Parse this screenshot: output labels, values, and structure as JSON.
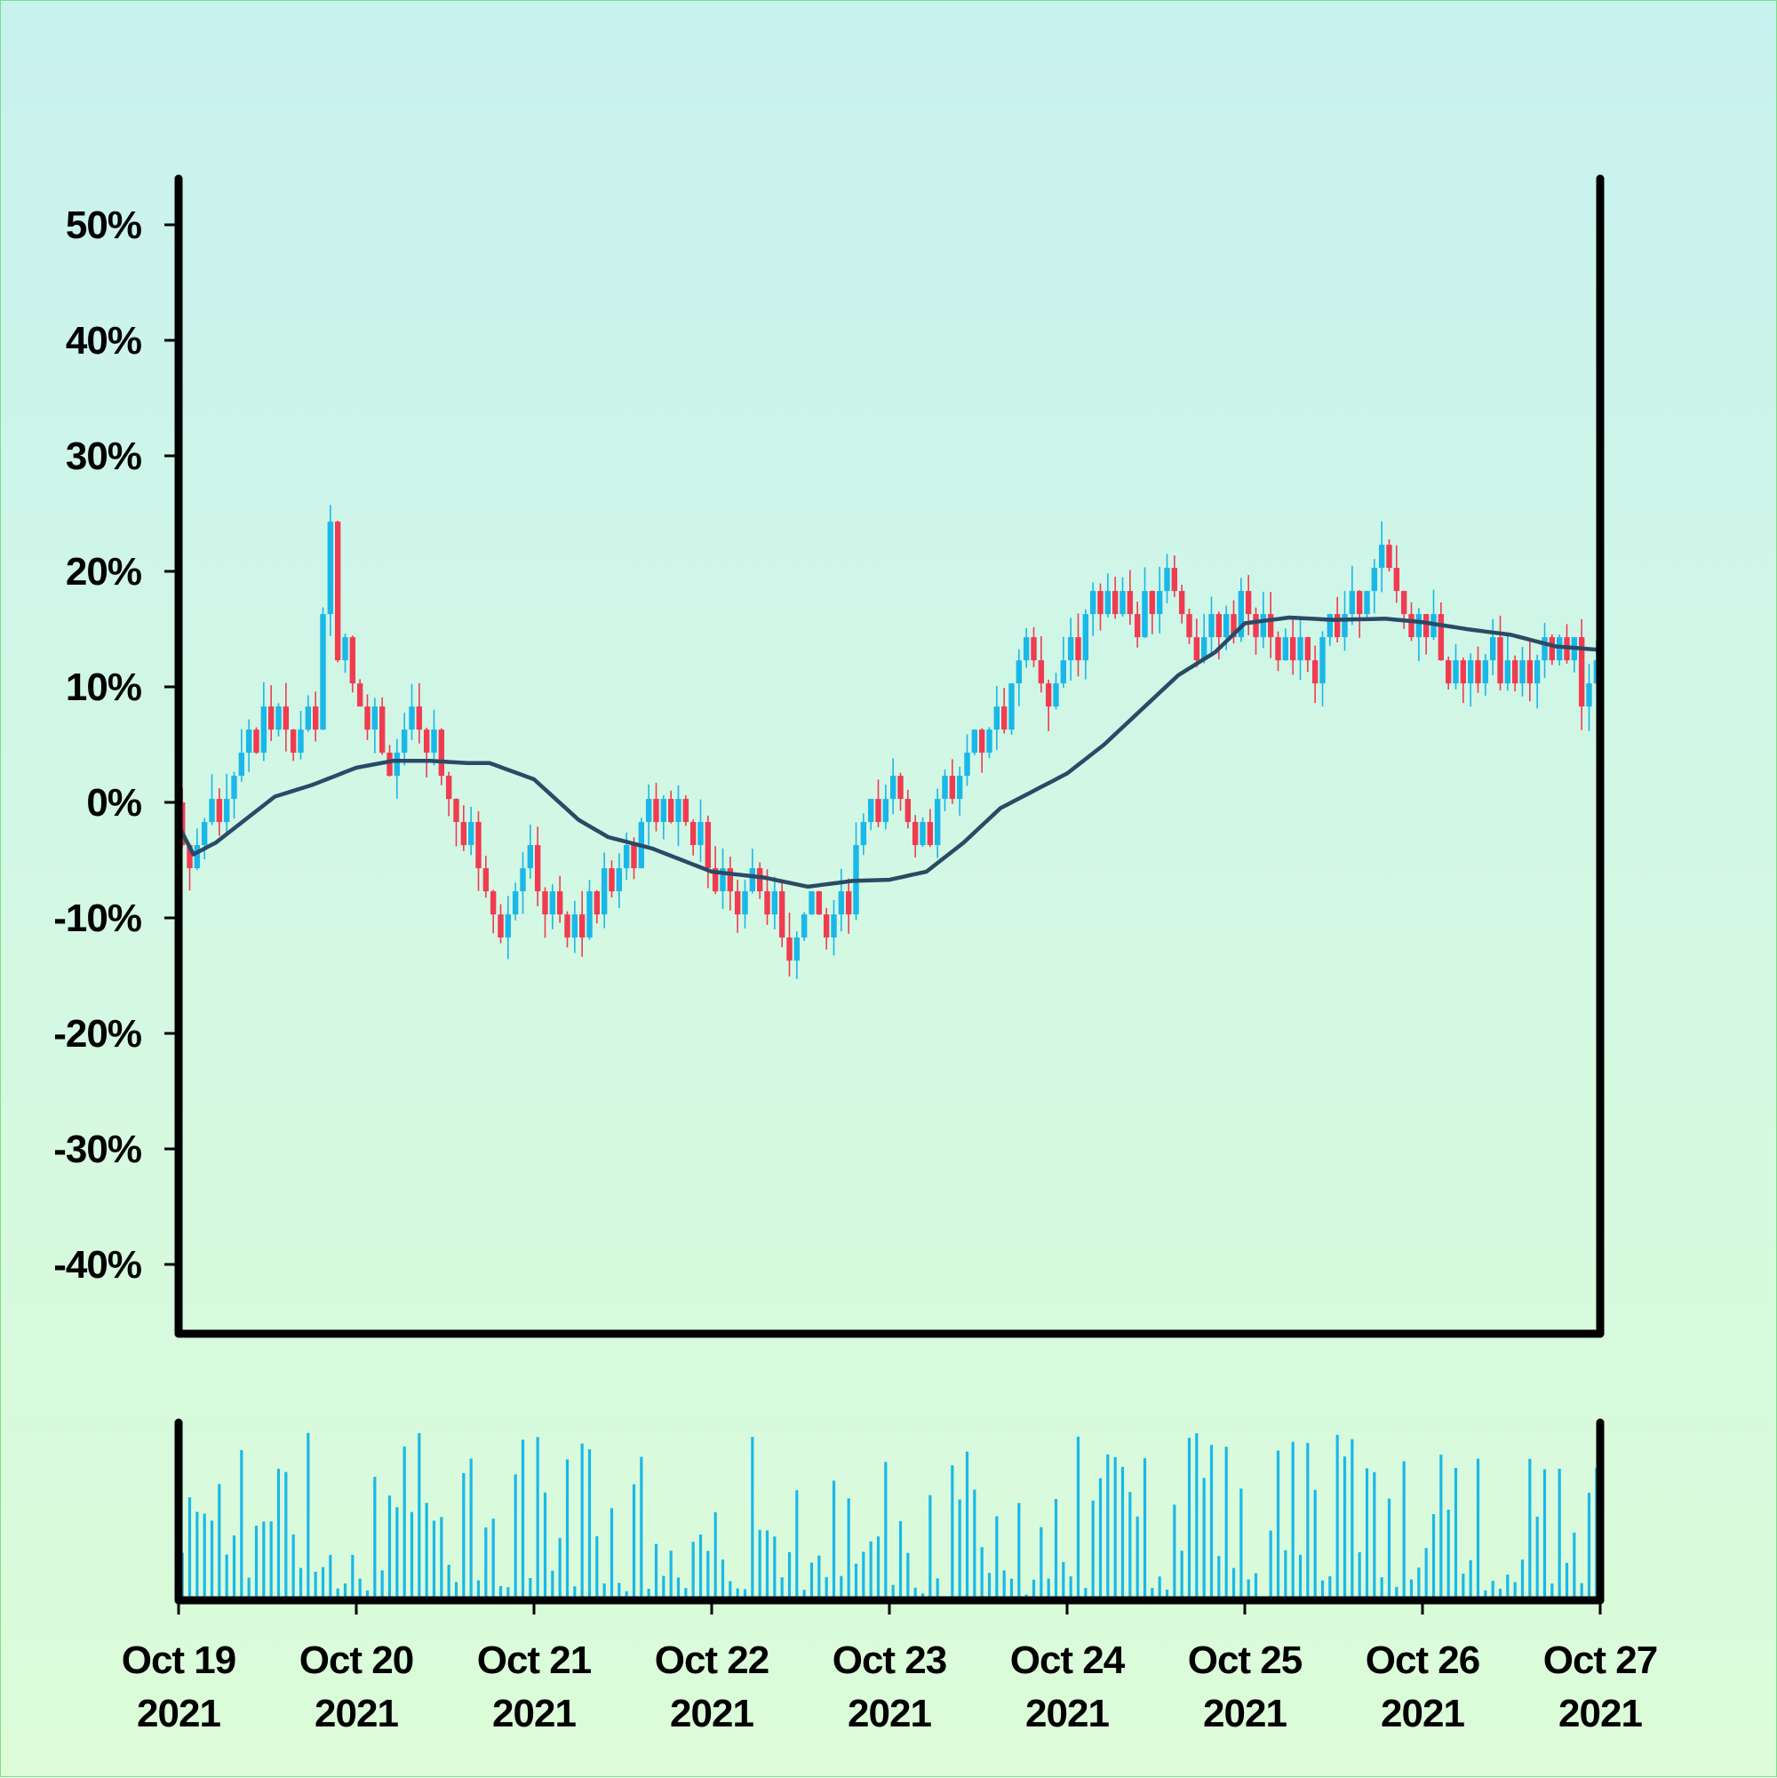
{
  "chart_data": {
    "type": "candlestick",
    "title": "",
    "xlabel": "",
    "ylabel": "",
    "ylim": [
      -0.46,
      0.54
    ],
    "y_ticks": [
      "50%",
      "40%",
      "30%",
      "20%",
      "10%",
      "0%",
      "-10%",
      "-20%",
      "-30%",
      "-40%"
    ],
    "y_tick_values": [
      0.5,
      0.4,
      0.3,
      0.2,
      0.1,
      0.0,
      -0.1,
      -0.2,
      -0.3,
      -0.4
    ],
    "x_ticks": [
      {
        "date": "2021-10-19",
        "line1": "Oct 19",
        "line2": "2021"
      },
      {
        "date": "2021-10-20",
        "line1": "Oct 20",
        "line2": "2021"
      },
      {
        "date": "2021-10-21",
        "line1": "Oct 21",
        "line2": "2021"
      },
      {
        "date": "2021-10-22",
        "line1": "Oct 22",
        "line2": "2021"
      },
      {
        "date": "2021-10-23",
        "line1": "Oct 23",
        "line2": "2021"
      },
      {
        "date": "2021-10-24",
        "line1": "Oct 24",
        "line2": "2021"
      },
      {
        "date": "2021-10-25",
        "line1": "Oct 25",
        "line2": "2021"
      },
      {
        "date": "2021-10-26",
        "line1": "Oct 26",
        "line2": "2021"
      },
      {
        "date": "2021-10-27",
        "line1": "Oct 27",
        "line2": "2021"
      }
    ],
    "x_range": [
      "2021-10-19",
      "2021-10-27"
    ],
    "up_color": "#1ab8e8",
    "down_color": "#f03c50",
    "ma_color": "#2a4a66",
    "volume_color": "#1ab8e8",
    "close_path": [
      {
        "date": "2021-10-19T00:00",
        "close": 0.0
      },
      {
        "date": "2021-10-19T02:00",
        "close": -0.06
      },
      {
        "date": "2021-10-19T05:00",
        "close": -0.02
      },
      {
        "date": "2021-10-19T09:00",
        "close": 0.04
      },
      {
        "date": "2021-10-19T12:00",
        "close": 0.08
      },
      {
        "date": "2021-10-19T16:00",
        "close": 0.04
      },
      {
        "date": "2021-10-19T19:00",
        "close": 0.06
      },
      {
        "date": "2021-10-19T21:00",
        "close": 0.23
      },
      {
        "date": "2021-10-19T22:00",
        "close": 0.13
      },
      {
        "date": "2021-10-20T05:00",
        "close": 0.04
      },
      {
        "date": "2021-10-20T09:00",
        "close": 0.06
      },
      {
        "date": "2021-10-20T15:00",
        "close": -0.02
      },
      {
        "date": "2021-10-20T20:00",
        "close": -0.1
      },
      {
        "date": "2021-10-21T00:00",
        "close": -0.05
      },
      {
        "date": "2021-10-21T05:00",
        "close": -0.12
      },
      {
        "date": "2021-10-21T10:00",
        "close": -0.07
      },
      {
        "date": "2021-10-21T14:00",
        "close": -0.03
      },
      {
        "date": "2021-10-21T19:00",
        "close": 0.0
      },
      {
        "date": "2021-10-22T00:00",
        "close": -0.05
      },
      {
        "date": "2021-10-22T05:00",
        "close": -0.08
      },
      {
        "date": "2021-10-22T12:00",
        "close": -0.12
      },
      {
        "date": "2021-10-22T17:00",
        "close": -0.1
      },
      {
        "date": "2021-10-22T21:00",
        "close": -0.04
      },
      {
        "date": "2021-10-23T02:00",
        "close": -0.01
      },
      {
        "date": "2021-10-23T06:00",
        "close": -0.03
      },
      {
        "date": "2021-10-23T11:00",
        "close": 0.03
      },
      {
        "date": "2021-10-23T15:00",
        "close": 0.07
      },
      {
        "date": "2021-10-23T19:00",
        "close": 0.13
      },
      {
        "date": "2021-10-23T22:00",
        "close": 0.1
      },
      {
        "date": "2021-10-24T02:00",
        "close": 0.14
      },
      {
        "date": "2021-10-24T05:00",
        "close": 0.19
      },
      {
        "date": "2021-10-24T09:00",
        "close": 0.16
      },
      {
        "date": "2021-10-24T14:00",
        "close": 0.19
      },
      {
        "date": "2021-10-24T19:00",
        "close": 0.14
      },
      {
        "date": "2021-10-25T00:00",
        "close": 0.18
      },
      {
        "date": "2021-10-25T04:00",
        "close": 0.14
      },
      {
        "date": "2021-10-25T09:00",
        "close": 0.12
      },
      {
        "date": "2021-10-25T15:00",
        "close": 0.17
      },
      {
        "date": "2021-10-25T19:00",
        "close": 0.2
      },
      {
        "date": "2021-10-26T00:00",
        "close": 0.15
      },
      {
        "date": "2021-10-26T05:00",
        "close": 0.09
      },
      {
        "date": "2021-10-26T10:00",
        "close": 0.12
      },
      {
        "date": "2021-10-26T15:00",
        "close": 0.1
      },
      {
        "date": "2021-10-26T19:00",
        "close": 0.15
      },
      {
        "date": "2021-10-26T22:00",
        "close": 0.09
      },
      {
        "date": "2021-10-27T00:00",
        "close": 0.11
      }
    ],
    "moving_average": [
      {
        "date": "2021-10-19T00:00",
        "value": -0.02
      },
      {
        "date": "2021-10-19T02:00",
        "value": -0.045
      },
      {
        "date": "2021-10-19T05:00",
        "value": -0.035
      },
      {
        "date": "2021-10-19T09:00",
        "value": -0.015
      },
      {
        "date": "2021-10-19T13:00",
        "value": 0.005
      },
      {
        "date": "2021-10-19T18:00",
        "value": 0.015
      },
      {
        "date": "2021-10-20T00:00",
        "value": 0.03
      },
      {
        "date": "2021-10-20T05:00",
        "value": 0.036
      },
      {
        "date": "2021-10-20T10:00",
        "value": 0.036
      },
      {
        "date": "2021-10-20T15:00",
        "value": 0.034
      },
      {
        "date": "2021-10-20T18:00",
        "value": 0.034
      },
      {
        "date": "2021-10-21T00:00",
        "value": 0.02
      },
      {
        "date": "2021-10-21T06:00",
        "value": -0.015
      },
      {
        "date": "2021-10-21T10:00",
        "value": -0.03
      },
      {
        "date": "2021-10-21T16:00",
        "value": -0.04
      },
      {
        "date": "2021-10-22T00:00",
        "value": -0.06
      },
      {
        "date": "2021-10-22T07:00",
        "value": -0.065
      },
      {
        "date": "2021-10-22T13:00",
        "value": -0.073
      },
      {
        "date": "2021-10-22T19:00",
        "value": -0.068
      },
      {
        "date": "2021-10-23T00:00",
        "value": -0.067
      },
      {
        "date": "2021-10-23T05:00",
        "value": -0.06
      },
      {
        "date": "2021-10-23T10:00",
        "value": -0.035
      },
      {
        "date": "2021-10-23T15:00",
        "value": -0.005
      },
      {
        "date": "2021-10-24T00:00",
        "value": 0.025
      },
      {
        "date": "2021-10-24T05:00",
        "value": 0.05
      },
      {
        "date": "2021-10-24T10:00",
        "value": 0.08
      },
      {
        "date": "2021-10-24T15:00",
        "value": 0.11
      },
      {
        "date": "2021-10-24T20:00",
        "value": 0.13
      },
      {
        "date": "2021-10-25T00:00",
        "value": 0.155
      },
      {
        "date": "2021-10-25T06:00",
        "value": 0.16
      },
      {
        "date": "2021-10-25T12:00",
        "value": 0.158
      },
      {
        "date": "2021-10-25T19:00",
        "value": 0.159
      },
      {
        "date": "2021-10-26T00:00",
        "value": 0.156
      },
      {
        "date": "2021-10-26T06:00",
        "value": 0.15
      },
      {
        "date": "2021-10-26T12:00",
        "value": 0.145
      },
      {
        "date": "2021-10-26T18:00",
        "value": 0.135
      },
      {
        "date": "2021-10-27T00:00",
        "value": 0.132
      }
    ]
  }
}
